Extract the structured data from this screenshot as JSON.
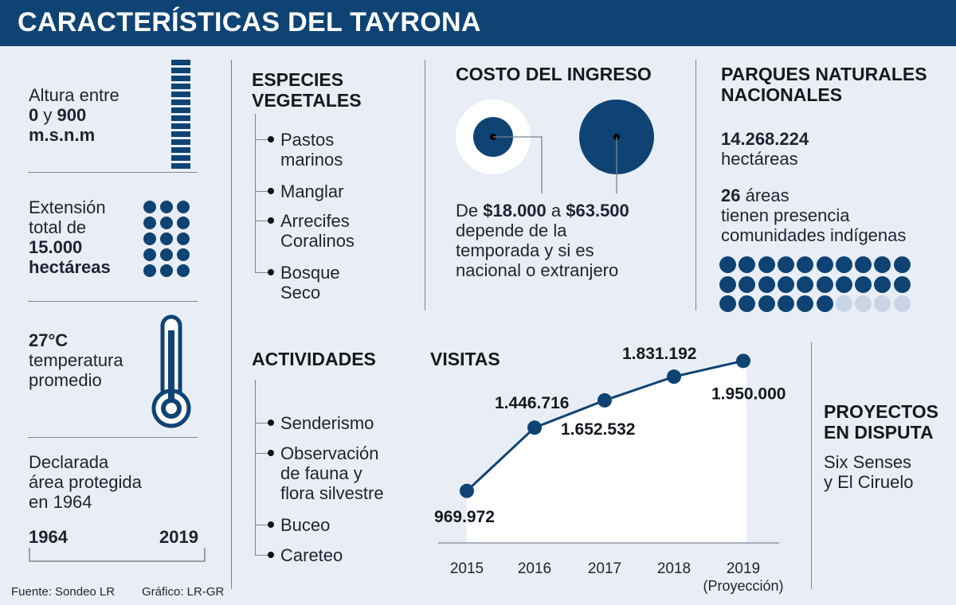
{
  "title": "CARACTERÍSTICAS DEL TAYRONA",
  "altura": {
    "line1": "Altura entre",
    "v1": "0",
    "mid": " y ",
    "v2": "900",
    "unit": "m.s.n.m"
  },
  "extension": {
    "line1": "Extensión",
    "line2": "total de",
    "value": "15.000",
    "unit": "hectáreas",
    "dot_count": 15
  },
  "temperatura": {
    "value": "27°C",
    "line2": "temperatura",
    "line3": "promedio"
  },
  "declarada": {
    "line1": "Declarada",
    "line2": "área protegida",
    "line3": "en 1964",
    "year_start": "1964",
    "year_end": "2019"
  },
  "especies": {
    "title_1": "ESPECIES",
    "title_2": "VEGETALES",
    "items": [
      [
        "Pastos",
        "marinos"
      ],
      [
        "Manglar"
      ],
      [
        "Arrecifes",
        "Coralinos"
      ],
      [
        "Bosque",
        "Seco"
      ]
    ]
  },
  "actividades": {
    "title": "ACTIVIDADES",
    "items": [
      [
        "Senderismo"
      ],
      [
        "Observación",
        "de fauna y",
        "flora silvestre"
      ],
      [
        "Buceo"
      ],
      [
        "Careteo"
      ]
    ]
  },
  "costo": {
    "title": "COSTO DEL INGRESO",
    "pre": "De ",
    "min": "$18.000",
    "mid": " a ",
    "max": "$63.500",
    "line2": "depende de la",
    "line3": "temporada y si es",
    "line4": "nacional o extranjero"
  },
  "parques": {
    "title_1": "PARQUES NATURALES",
    "title_2": "NACIONALES",
    "hectareas": "14.268.224",
    "hectareas_label": "hectáreas",
    "areas": "26",
    "areas_label": " áreas",
    "line2": "tienen presencia",
    "line3": "comunidades indígenas",
    "highlighted": 26,
    "total": 30
  },
  "proyectos": {
    "title_1": "PROYECTOS",
    "title_2": "EN DISPUTA",
    "line1": "Six Senses",
    "line2": "y El Ciruelo"
  },
  "visitas_title": "VISITAS",
  "chart_data": {
    "type": "line",
    "title": "VISITAS",
    "categories": [
      "2015",
      "2016",
      "2017",
      "2018",
      "2019"
    ],
    "category_notes": [
      "",
      "",
      "",
      "",
      "(Proyección)"
    ],
    "values": [
      969972,
      1446716,
      1652532,
      1831192,
      1950000
    ],
    "data_labels": [
      "969.972",
      "1.446.716",
      "1.652.532",
      "1.831.192",
      "1.950.000"
    ],
    "grid": false
  },
  "footer": {
    "source": "Fuente: Sondeo LR",
    "graphic": "Gráfico: LR-GR"
  },
  "colors": {
    "primary": "#0e4374",
    "light": "#c9d5e6",
    "background": "#e9eef6",
    "white": "#ffffff"
  }
}
